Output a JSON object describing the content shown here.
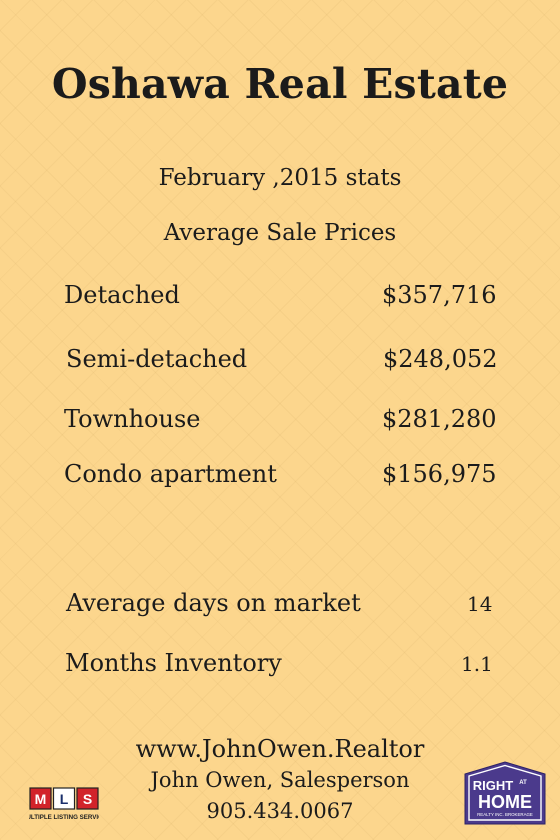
{
  "title": "Oshawa Real Estate",
  "period": "February ,2015 stats",
  "section_heading": "Average Sale Prices",
  "prices": [
    {
      "label": "Detached",
      "value": "$357,716"
    },
    {
      "label": "Semi-detached",
      "value": "$248,052"
    },
    {
      "label": "Townhouse",
      "value": "$281,280"
    },
    {
      "label": "Condo apartment",
      "value": "$156,975"
    }
  ],
  "stats": [
    {
      "label": "Average days on market",
      "value": "14"
    },
    {
      "label": "Months Inventory",
      "value": "1.1"
    }
  ],
  "footer": {
    "website": "www.JohnOwen.Realtor",
    "agent": "John Owen, Salesperson",
    "phone": "905.434.0067"
  },
  "logos": {
    "mls": {
      "letters": "MLS",
      "caption": "MULTIPLE LISTING SERVICE"
    },
    "brokerage": {
      "line1": "RIGHT",
      "line2": "AT",
      "line3": "HOME",
      "caption": "REALTY INC. BROKERAGE"
    }
  },
  "colors": {
    "background": "#fcd68d",
    "text": "#1b1b1b",
    "brokerage_purple": "#4b3a8c",
    "mls_red": "#d2232a"
  }
}
